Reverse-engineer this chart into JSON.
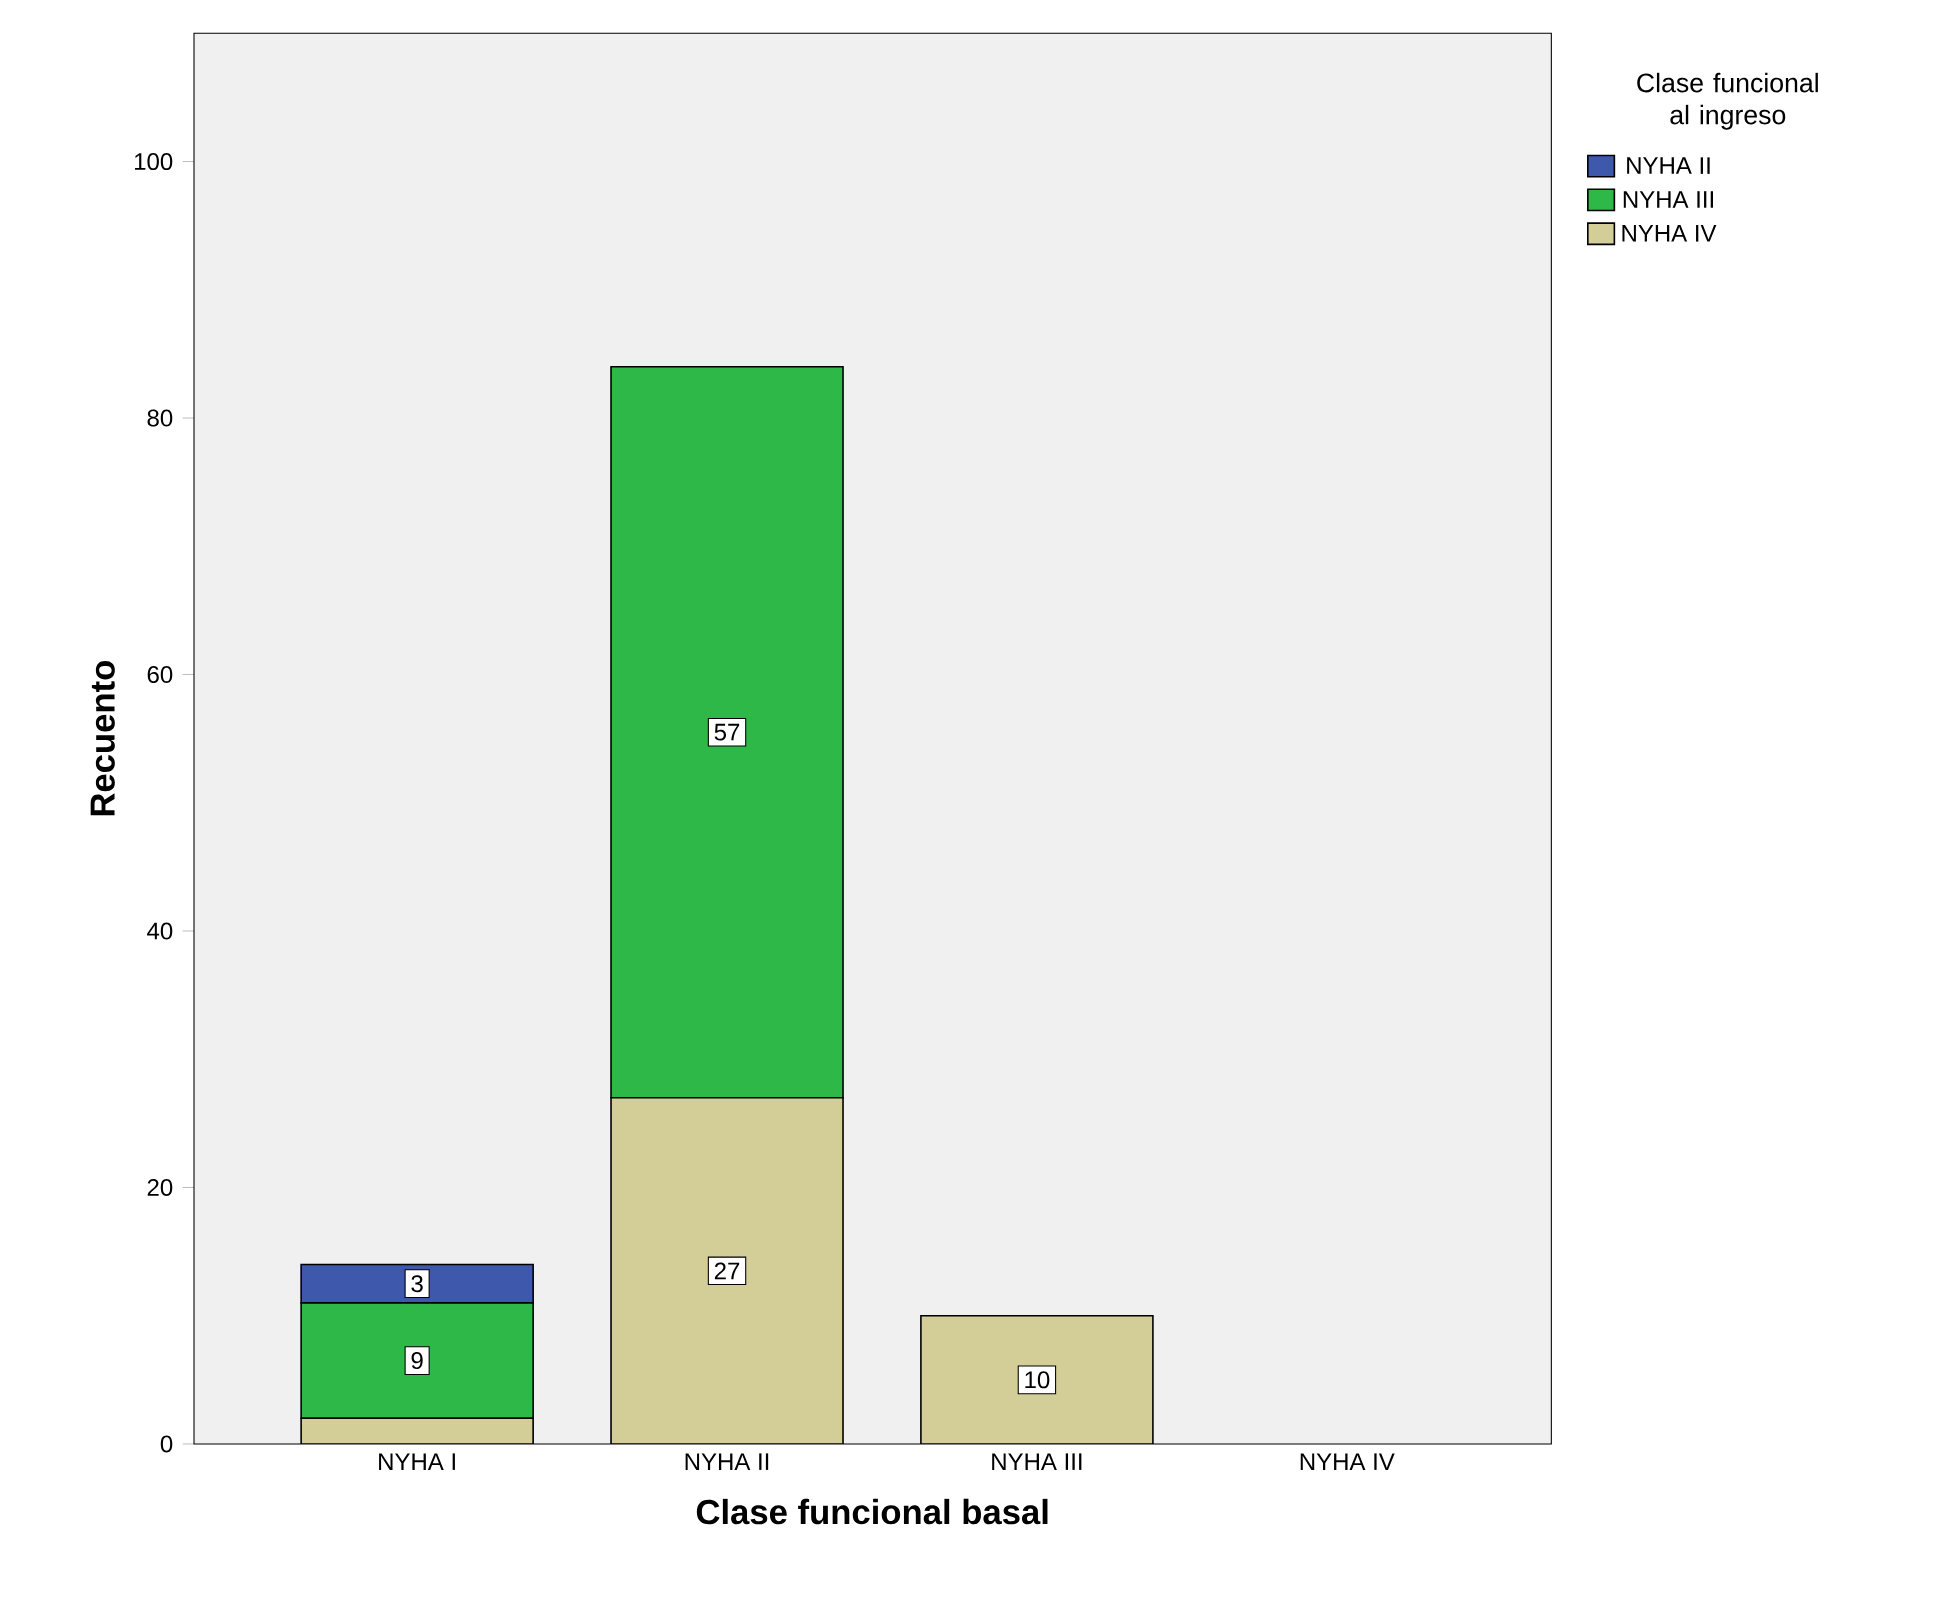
{
  "chart_data": {
    "type": "bar",
    "stacked": true,
    "xlabel": "Clase funcional basal",
    "ylabel": "Recuento",
    "legend_title": "Clase funcional al ingreso",
    "legend": "top right",
    "categories": [
      "NYHA I",
      "NYHA II",
      "NYHA III",
      "NYHA IV"
    ],
    "series": [
      {
        "name": "NYHA IV",
        "color": "#d3ce97",
        "values": [
          2,
          27,
          10,
          0
        ],
        "value_labels": [
          null,
          "27",
          "10",
          null
        ]
      },
      {
        "name": "NYHA III",
        "color": "#2eb848",
        "values": [
          9,
          57,
          0,
          0
        ],
        "value_labels": [
          "9",
          "57",
          null,
          null
        ]
      },
      {
        "name": "NYHA II",
        "color": "#3e58ac",
        "values": [
          3,
          0,
          0,
          0
        ],
        "value_labels": [
          "3",
          null,
          null,
          null
        ]
      }
    ],
    "ylim": [
      0,
      110
    ],
    "yticks": [
      0,
      20,
      40,
      60,
      80,
      100
    ],
    "grid": false
  }
}
